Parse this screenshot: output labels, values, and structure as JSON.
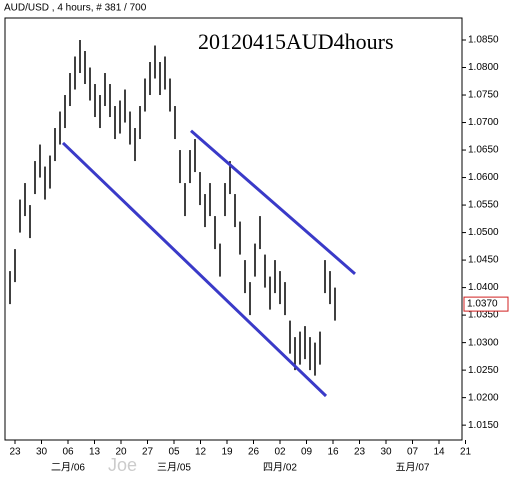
{
  "chart_data": {
    "type": "ohlc",
    "header": "AUD/USD , 4 hours, # 381 / 700",
    "title": "20120415AUD4hours",
    "watermark": "Joe",
    "color": "#000000",
    "high": [
      1.043,
      1.047,
      1.056,
      1.059,
      1.055,
      1.063,
      1.066,
      1.062,
      1.064,
      1.069,
      1.072,
      1.075,
      1.079,
      1.082,
      1.085,
      1.083,
      1.08,
      1.077,
      1.075,
      1.079,
      1.077,
      1.073,
      1.074,
      1.076,
      1.072,
      1.069,
      1.073,
      1.078,
      1.081,
      1.084,
      1.081,
      1.082,
      1.078,
      1.073,
      1.065,
      1.059,
      1.065,
      1.067,
      1.061,
      1.057,
      1.059,
      1.053,
      1.048,
      1.059,
      1.063,
      1.057,
      1.052,
      1.045,
      1.041,
      1.048,
      1.053,
      1.046,
      1.042,
      1.045,
      1.043,
      1.041,
      1.034,
      1.031,
      1.032,
      1.033,
      1.031,
      1.03,
      1.032,
      1.045,
      1.043,
      1.04
    ],
    "low": [
      1.037,
      1.041,
      1.05,
      1.053,
      1.049,
      1.057,
      1.06,
      1.056,
      1.058,
      1.063,
      1.066,
      1.069,
      1.073,
      1.076,
      1.079,
      1.077,
      1.074,
      1.071,
      1.069,
      1.073,
      1.071,
      1.067,
      1.068,
      1.07,
      1.066,
      1.063,
      1.067,
      1.072,
      1.075,
      1.078,
      1.075,
      1.076,
      1.072,
      1.067,
      1.059,
      1.053,
      1.059,
      1.061,
      1.055,
      1.051,
      1.053,
      1.047,
      1.042,
      1.053,
      1.057,
      1.051,
      1.046,
      1.039,
      1.035,
      1.042,
      1.047,
      1.04,
      1.036,
      1.039,
      1.037,
      1.035,
      1.028,
      1.025,
      1.026,
      1.027,
      1.025,
      1.024,
      1.026,
      1.039,
      1.037,
      1.034
    ],
    "categories": [
      "23",
      "30",
      "06",
      "13",
      "20",
      "27",
      "05",
      "12",
      "19",
      "26",
      "02",
      "09",
      "16",
      "23",
      "30",
      "07",
      "14",
      "21"
    ],
    "months": [
      null,
      null,
      "二月/06",
      null,
      null,
      null,
      "三月/05",
      null,
      null,
      null,
      "四月/02",
      null,
      null,
      null,
      null,
      "五月/07",
      null,
      null
    ],
    "trendlines": [
      {
        "color": "#3a3ac8",
        "values": [
          1.0663,
          1.0203
        ]
      },
      {
        "color": "#3a3ac8",
        "values": [
          1.0685,
          1.0425
        ]
      }
    ],
    "last_price": {
      "value": 1.037,
      "label": "1.0370"
    },
    "ylim": [
      1.0123,
      1.089
    ],
    "yticks": [
      {
        "value": 1.015,
        "label": "1.0150"
      },
      {
        "value": 1.02,
        "label": "1.0200"
      },
      {
        "value": 1.025,
        "label": "1.0250"
      },
      {
        "value": 1.03,
        "label": "1.0300"
      },
      {
        "value": 1.035,
        "label": "1.0350"
      },
      {
        "value": 1.04,
        "label": "1.0400"
      },
      {
        "value": 1.045,
        "label": "1.0450"
      },
      {
        "value": 1.05,
        "label": "1.0500"
      },
      {
        "value": 1.055,
        "label": "1.0550"
      },
      {
        "value": 1.06,
        "label": "1.0600"
      },
      {
        "value": 1.065,
        "label": "1.0650"
      },
      {
        "value": 1.07,
        "label": "1.0700"
      },
      {
        "value": 1.075,
        "label": "1.0750"
      },
      {
        "value": 1.08,
        "label": "1.0800"
      },
      {
        "value": 1.085,
        "label": "1.0850"
      }
    ]
  }
}
